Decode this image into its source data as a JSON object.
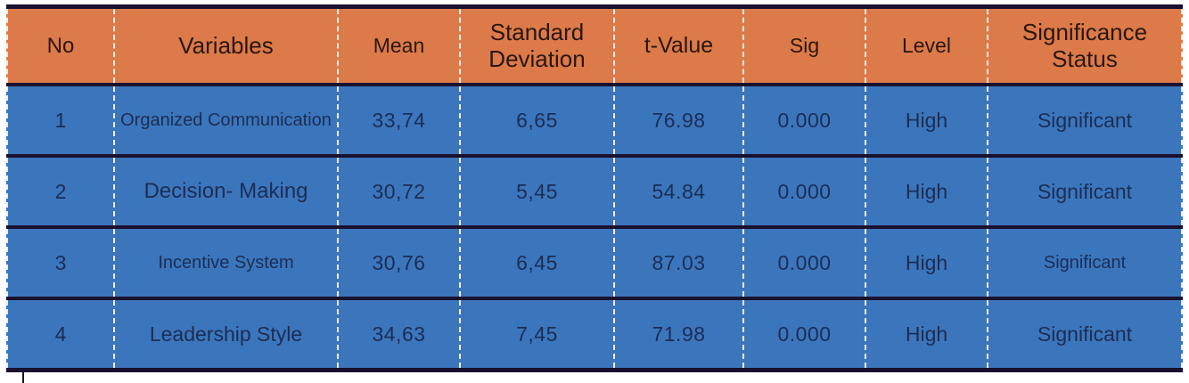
{
  "colors": {
    "page_bg": "#ffffff",
    "header_bg": "#dc7a49",
    "row_bg": "#3b76bd",
    "line": "#1a112f",
    "dash": "#efede3",
    "header_text": "#2a1710",
    "body_text": "#1c2d54"
  },
  "table": {
    "headers": [
      "No",
      "Variables",
      "Mean",
      "Standard Deviation",
      "t-Value",
      "Sig",
      "Level",
      "Significance Status"
    ],
    "rows": [
      [
        "1",
        "Organized Communication",
        "33,74",
        "6,65",
        "76.98",
        "0.000",
        "High",
        "Significant"
      ],
      [
        "2",
        "Decision- Making",
        "30,72",
        "5,45",
        "54.84",
        "0.000",
        "High",
        "Significant"
      ],
      [
        "3",
        "Incentive System",
        "30,76",
        "6,45",
        "87.03",
        "0.000",
        "High",
        "Significant"
      ],
      [
        "4",
        "Leadership Style",
        "34,63",
        "7,45",
        "71.98",
        "0.000",
        "High",
        "Significant"
      ]
    ]
  }
}
